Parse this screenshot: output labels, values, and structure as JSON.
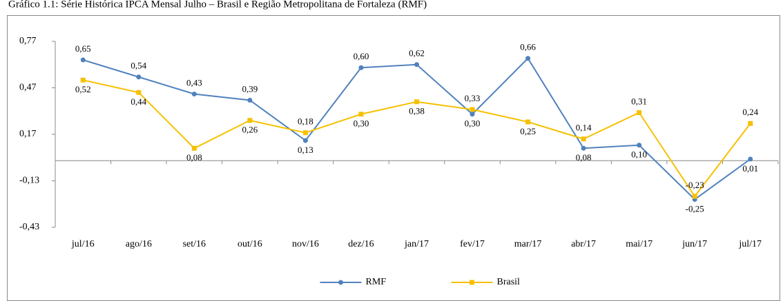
{
  "chart_data": {
    "type": "line",
    "title": "Gráfico 1.1: Série Histórica IPCA Mensal Julho – Brasil e Região Metropolitana de Fortaleza (RMF)",
    "categories": [
      "jul/16",
      "ago/16",
      "set/16",
      "out/16",
      "nov/16",
      "dez/16",
      "jan/17",
      "fev/17",
      "mar/17",
      "abr/17",
      "mai/17",
      "jun/17",
      "jul/17"
    ],
    "series": [
      {
        "name": "RMF",
        "color": "#4f81bd",
        "values": [
          0.65,
          0.54,
          0.43,
          0.39,
          0.13,
          0.6,
          0.62,
          0.3,
          0.66,
          0.08,
          0.1,
          -0.25,
          0.01
        ],
        "value_labels": [
          "0,65",
          "0,54",
          "0,43",
          "0,39",
          "0,13",
          "0,60",
          "0,62",
          "0,30",
          "0,66",
          "0,08",
          "0,10",
          "-0,25",
          "0,01"
        ]
      },
      {
        "name": "Brasil",
        "color": "#f6c000",
        "values": [
          0.52,
          0.44,
          0.08,
          0.26,
          0.18,
          0.3,
          0.38,
          0.33,
          0.25,
          0.14,
          0.31,
          -0.23,
          0.24
        ],
        "value_labels": [
          "0,52",
          "0,44",
          "0,08",
          "0,26",
          "0,18",
          "0,30",
          "0,38",
          "0,33",
          "0,25",
          "0,14",
          "0,31",
          "-0,23",
          "0,24"
        ]
      }
    ],
    "ylim": [
      -0.43,
      0.77
    ],
    "yticks": [
      {
        "value": 0.77,
        "label": "0,77"
      },
      {
        "value": 0.47,
        "label": "0,47"
      },
      {
        "value": 0.17,
        "label": "0,17"
      },
      {
        "value": -0.13,
        "label": "-0,13"
      },
      {
        "value": -0.43,
        "label": "-0,43"
      }
    ],
    "legend": "bottom"
  }
}
